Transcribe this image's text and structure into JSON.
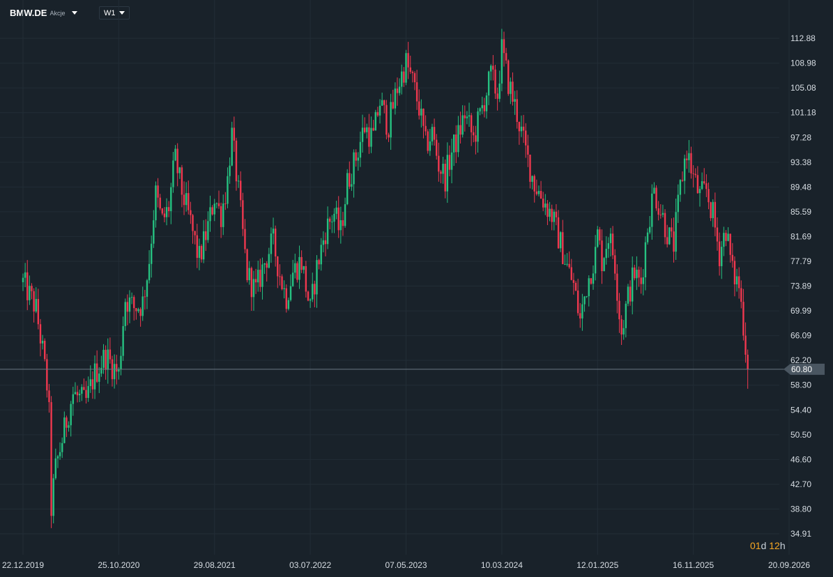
{
  "toolbar": {
    "symbol": "BMW.DE",
    "symbol_type": "Akcje",
    "interval": "W1"
  },
  "colors": {
    "background": "#19222a",
    "grid": "#222d36",
    "up": "#26c281",
    "down": "#f0384f",
    "price_line": "#6c7883",
    "price_tag": "#4a5661",
    "countdown": "#f5a623"
  },
  "countdown": {
    "d_value": "01",
    "d_unit": "d",
    "h_value": "12",
    "h_unit": "h"
  },
  "chart_data": {
    "type": "candlestick",
    "interval": "W1",
    "y_ticks": [
      "112.88",
      "108.98",
      "105.08",
      "101.18",
      "97.28",
      "93.38",
      "89.48",
      "85.59",
      "81.69",
      "77.79",
      "73.89",
      "69.99",
      "66.09",
      "62.20",
      "58.30",
      "54.40",
      "50.50",
      "46.60",
      "42.70",
      "38.80",
      "34.91"
    ],
    "x_ticks": [
      "22.12.2019",
      "25.10.2020",
      "29.08.2021",
      "03.07.2022",
      "07.05.2023",
      "10.03.2024",
      "12.01.2025",
      "16.11.2025",
      "20.09.2026"
    ],
    "current_price": "60.80",
    "ylim": [
      34.91,
      112.88
    ],
    "close_path": [
      [
        "22.12.2019",
        74.5
      ],
      [
        "01.02.2020",
        70.5
      ],
      [
        "22.02.2020",
        64.0
      ],
      [
        "14.03.2020",
        56.0
      ],
      [
        "21.03.2020",
        38.5
      ],
      [
        "04.04.2020",
        45.0
      ],
      [
        "02.05.2020",
        51.0
      ],
      [
        "30.05.2020",
        57.0
      ],
      [
        "11.07.2020",
        55.5
      ],
      [
        "08.08.2020",
        60.0
      ],
      [
        "12.09.2020",
        63.0
      ],
      [
        "25.10.2020",
        60.0
      ],
      [
        "14.11.2020",
        72.0
      ],
      [
        "12.12.2020",
        70.5
      ],
      [
        "09.01.2021",
        71.0
      ],
      [
        "30.01.2021",
        77.5
      ],
      [
        "20.02.2021",
        88.5
      ],
      [
        "13.03.2021",
        84.0
      ],
      [
        "03.04.2021",
        86.0
      ],
      [
        "24.04.2021",
        94.0
      ],
      [
        "15.05.2021",
        89.0
      ],
      [
        "12.06.2021",
        84.0
      ],
      [
        "10.07.2021",
        78.0
      ],
      [
        "07.08.2021",
        83.0
      ],
      [
        "29.08.2021",
        88.0
      ],
      [
        "18.09.2021",
        85.0
      ],
      [
        "09.10.2021",
        90.0
      ],
      [
        "23.10.2021",
        98.0
      ],
      [
        "13.11.2021",
        89.0
      ],
      [
        "11.12.2021",
        76.0
      ],
      [
        "08.01.2022",
        73.0
      ],
      [
        "05.02.2022",
        77.5
      ],
      [
        "05.03.2022",
        81.0
      ],
      [
        "26.03.2022",
        76.0
      ],
      [
        "16.04.2022",
        72.0
      ],
      [
        "07.05.2022",
        76.0
      ],
      [
        "04.06.2022",
        78.0
      ],
      [
        "03.07.2022",
        70.0
      ],
      [
        "23.07.2022",
        76.5
      ],
      [
        "20.08.2022",
        82.5
      ],
      [
        "17.09.2022",
        85.5
      ],
      [
        "08.10.2022",
        82.0
      ],
      [
        "29.10.2022",
        90.0
      ],
      [
        "26.11.2022",
        94.0
      ],
      [
        "24.12.2022",
        99.0
      ],
      [
        "21.01.2023",
        97.0
      ],
      [
        "11.02.2023",
        103.0
      ],
      [
        "11.03.2023",
        99.0
      ],
      [
        "08.04.2023",
        105.0
      ],
      [
        "07.05.2023",
        109.0
      ],
      [
        "28.05.2023",
        106.0
      ],
      [
        "18.06.2023",
        102.0
      ],
      [
        "09.07.2023",
        96.0
      ],
      [
        "30.07.2023",
        98.0
      ],
      [
        "20.08.2023",
        93.0
      ],
      [
        "10.09.2023",
        91.0
      ],
      [
        "01.10.2023",
        95.0
      ],
      [
        "22.10.2023",
        97.5
      ],
      [
        "12.11.2023",
        101.0
      ],
      [
        "10.12.2023",
        97.0
      ],
      [
        "07.01.2024",
        102.0
      ],
      [
        "04.02.2024",
        107.0
      ],
      [
        "25.02.2024",
        104.0
      ],
      [
        "10.03.2024",
        111.0
      ],
      [
        "31.03.2024",
        106.0
      ],
      [
        "28.04.2024",
        101.0
      ],
      [
        "26.05.2024",
        95.0
      ],
      [
        "23.06.2024",
        90.0
      ],
      [
        "21.07.2024",
        87.5
      ],
      [
        "18.08.2024",
        85.0
      ],
      [
        "15.09.2024",
        80.5
      ],
      [
        "06.10.2024",
        77.0
      ],
      [
        "27.10.2024",
        74.0
      ],
      [
        "17.11.2024",
        68.5
      ],
      [
        "08.12.2024",
        74.0
      ],
      [
        "05.01.2025",
        79.0
      ],
      [
        "26.01.2025",
        78.0
      ],
      [
        "16.02.2025",
        82.0
      ],
      [
        "12.01.2025",
        82.0
      ],
      [
        "08.03.2025",
        78.0
      ],
      [
        "29.03.2025",
        66.5
      ],
      [
        "19.04.2025",
        72.0
      ],
      [
        "10.05.2025",
        76.0
      ],
      [
        "31.05.2025",
        74.0
      ],
      [
        "21.06.2025",
        83.0
      ],
      [
        "12.07.2025",
        89.0
      ],
      [
        "02.08.2025",
        86.0
      ],
      [
        "23.08.2025",
        82.5
      ],
      [
        "13.09.2025",
        80.0
      ],
      [
        "04.10.2025",
        89.0
      ],
      [
        "25.10.2025",
        95.5
      ],
      [
        "16.11.2025",
        91.0
      ],
      [
        "07.12.2025",
        88.0
      ],
      [
        "28.12.2025",
        89.0
      ],
      [
        "18.01.2026",
        85.0
      ],
      [
        "08.02.2026",
        79.0
      ],
      [
        "01.03.2026",
        83.0
      ],
      [
        "22.03.2026",
        76.0
      ],
      [
        "12.04.2026",
        74.0
      ],
      [
        "26.04.2026",
        68.0
      ],
      [
        "10.05.2026",
        60.8
      ]
    ]
  }
}
